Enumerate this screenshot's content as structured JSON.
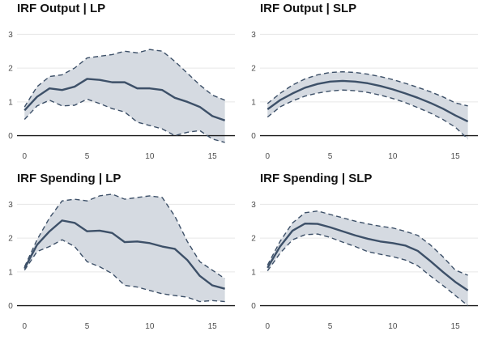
{
  "chart_data": [
    {
      "type": "line",
      "title": "IRF Output | LP",
      "x": [
        0,
        1,
        2,
        3,
        4,
        5,
        6,
        7,
        8,
        9,
        10,
        11,
        12,
        13,
        14,
        15,
        16
      ],
      "series": [
        {
          "role": "estimate",
          "values": [
            0.75,
            1.15,
            1.4,
            1.35,
            1.45,
            1.68,
            1.65,
            1.58,
            1.58,
            1.4,
            1.4,
            1.35,
            1.12,
            1.0,
            0.85,
            0.58,
            0.45
          ]
        },
        {
          "role": "upper",
          "values": [
            0.85,
            1.45,
            1.75,
            1.8,
            2.0,
            2.3,
            2.35,
            2.4,
            2.5,
            2.45,
            2.55,
            2.5,
            2.2,
            1.85,
            1.5,
            1.2,
            1.05
          ]
        },
        {
          "role": "lower",
          "values": [
            0.48,
            0.88,
            1.05,
            0.88,
            0.9,
            1.08,
            0.95,
            0.8,
            0.7,
            0.4,
            0.3,
            0.2,
            0.0,
            0.1,
            0.15,
            -0.1,
            -0.2
          ]
        }
      ],
      "xticks": [
        0,
        5,
        10,
        15
      ],
      "yticks": [
        0,
        1,
        2,
        3
      ],
      "xlim": [
        -0.6,
        16.8
      ],
      "ylim": [
        -0.25,
        3.2
      ],
      "grid": true,
      "zero_line": true,
      "colors": {
        "line": "#3d5068",
        "band": "#d5dae1"
      }
    },
    {
      "type": "line",
      "title": "IRF Output | SLP",
      "x": [
        0,
        1,
        2,
        3,
        4,
        5,
        6,
        7,
        8,
        9,
        10,
        11,
        12,
        13,
        14,
        15,
        16
      ],
      "series": [
        {
          "role": "estimate",
          "values": [
            0.78,
            1.05,
            1.25,
            1.42,
            1.53,
            1.6,
            1.62,
            1.6,
            1.55,
            1.47,
            1.37,
            1.25,
            1.12,
            0.97,
            0.8,
            0.6,
            0.42
          ]
        },
        {
          "role": "upper",
          "values": [
            0.95,
            1.25,
            1.5,
            1.68,
            1.8,
            1.87,
            1.89,
            1.87,
            1.82,
            1.75,
            1.66,
            1.55,
            1.43,
            1.3,
            1.15,
            0.97,
            0.88
          ]
        },
        {
          "role": "lower",
          "values": [
            0.55,
            0.85,
            1.03,
            1.17,
            1.26,
            1.32,
            1.35,
            1.33,
            1.28,
            1.2,
            1.1,
            0.98,
            0.83,
            0.67,
            0.48,
            0.25,
            -0.1
          ]
        }
      ],
      "xticks": [
        0,
        5,
        10,
        15
      ],
      "yticks": [
        0,
        1,
        2,
        3
      ],
      "xlim": [
        -0.6,
        16.8
      ],
      "ylim": [
        -0.25,
        3.2
      ],
      "grid": true,
      "zero_line": true,
      "colors": {
        "line": "#3d5068",
        "band": "#d5dae1"
      }
    },
    {
      "type": "line",
      "title": "IRF Spending | LP",
      "x": [
        0,
        1,
        2,
        3,
        4,
        5,
        6,
        7,
        8,
        9,
        10,
        11,
        12,
        13,
        14,
        15,
        16
      ],
      "series": [
        {
          "role": "estimate",
          "values": [
            1.1,
            1.8,
            2.2,
            2.52,
            2.45,
            2.2,
            2.22,
            2.15,
            1.88,
            1.9,
            1.85,
            1.75,
            1.68,
            1.35,
            0.88,
            0.6,
            0.5
          ]
        },
        {
          "role": "upper",
          "values": [
            1.15,
            1.95,
            2.6,
            3.1,
            3.15,
            3.1,
            3.25,
            3.3,
            3.15,
            3.2,
            3.25,
            3.2,
            2.65,
            1.9,
            1.3,
            1.05,
            0.8
          ]
        },
        {
          "role": "lower",
          "values": [
            1.05,
            1.6,
            1.75,
            1.95,
            1.75,
            1.3,
            1.15,
            0.95,
            0.6,
            0.55,
            0.45,
            0.35,
            0.3,
            0.25,
            0.12,
            0.15,
            0.12
          ]
        }
      ],
      "xticks": [
        0,
        5,
        10,
        15
      ],
      "yticks": [
        0,
        1,
        2,
        3
      ],
      "xlim": [
        -0.6,
        16.8
      ],
      "ylim": [
        -0.25,
        3.2
      ],
      "grid": true,
      "zero_line": true,
      "colors": {
        "line": "#3d5068",
        "band": "#d5dae1"
      }
    },
    {
      "type": "line",
      "title": "IRF Spending | SLP",
      "x": [
        0,
        1,
        2,
        3,
        4,
        5,
        6,
        7,
        8,
        9,
        10,
        11,
        12,
        13,
        14,
        15,
        16
      ],
      "series": [
        {
          "role": "estimate",
          "values": [
            1.12,
            1.75,
            2.22,
            2.43,
            2.42,
            2.32,
            2.2,
            2.08,
            1.98,
            1.9,
            1.85,
            1.78,
            1.62,
            1.32,
            1.0,
            0.7,
            0.45
          ]
        },
        {
          "role": "upper",
          "values": [
            1.2,
            1.9,
            2.45,
            2.75,
            2.8,
            2.7,
            2.6,
            2.5,
            2.42,
            2.35,
            2.3,
            2.2,
            2.08,
            1.8,
            1.45,
            1.05,
            0.9
          ]
        },
        {
          "role": "lower",
          "values": [
            1.03,
            1.55,
            1.95,
            2.1,
            2.12,
            2.02,
            1.88,
            1.75,
            1.6,
            1.52,
            1.45,
            1.35,
            1.18,
            0.88,
            0.6,
            0.3,
            0.0
          ]
        }
      ],
      "xticks": [
        0,
        5,
        10,
        15
      ],
      "yticks": [
        0,
        1,
        2,
        3
      ],
      "xlim": [
        -0.6,
        16.8
      ],
      "ylim": [
        -0.25,
        3.2
      ],
      "grid": true,
      "zero_line": true,
      "colors": {
        "line": "#3d5068",
        "band": "#d5dae1"
      }
    }
  ]
}
